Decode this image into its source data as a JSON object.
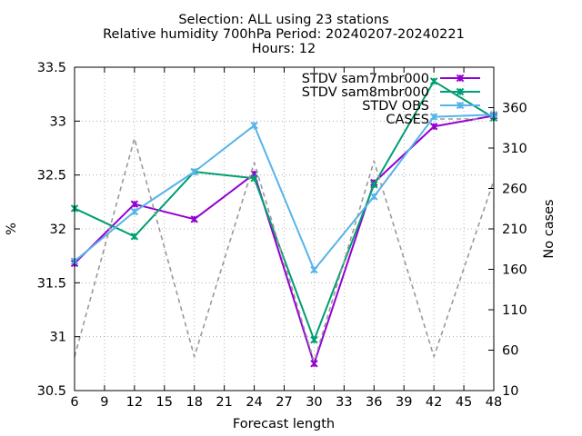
{
  "chart_data": {
    "type": "line",
    "title_lines": [
      "Selection: ALL using    23 stations",
      "Relative humidity 700hPa   Period: 20240207-20240221",
      "Hours: 12"
    ],
    "xlabel": "Forecast length",
    "ylabel": "%",
    "y2label": "No cases",
    "x_ticks": [
      6,
      9,
      12,
      15,
      18,
      21,
      24,
      27,
      30,
      33,
      36,
      39,
      42,
      45,
      48
    ],
    "xlim": [
      6,
      48
    ],
    "y_ticks": [
      30.5,
      31,
      31.5,
      32,
      32.5,
      33,
      33.5
    ],
    "ylim": [
      30.5,
      33.5
    ],
    "y2_ticks": [
      10,
      60,
      110,
      160,
      210,
      260,
      310,
      360
    ],
    "y2lim": [
      10,
      410
    ],
    "grid": true,
    "legend_position": "top-right",
    "series": [
      {
        "name": "STDV sam7mbr000",
        "color": "#9400d3",
        "axis": "y",
        "dash": false,
        "marker": "x",
        "x": [
          6,
          12,
          18,
          24,
          30,
          36,
          42,
          48
        ],
        "values": [
          31.68,
          32.23,
          32.09,
          32.51,
          30.75,
          32.43,
          32.95,
          33.05
        ]
      },
      {
        "name": "STDV sam8mbr000",
        "color": "#009e73",
        "axis": "y",
        "dash": false,
        "marker": "x",
        "x": [
          6,
          12,
          18,
          24,
          30,
          36,
          42,
          48
        ],
        "values": [
          32.19,
          31.93,
          32.53,
          32.47,
          30.97,
          32.41,
          33.37,
          33.03
        ]
      },
      {
        "name": "STDV OBS",
        "color": "#56b4e9",
        "axis": "y",
        "dash": false,
        "marker": "x",
        "x": [
          6,
          12,
          18,
          24,
          30,
          36,
          42,
          48
        ],
        "values": [
          31.7,
          32.16,
          32.53,
          32.96,
          31.62,
          32.3,
          33.04,
          33.06
        ]
      },
      {
        "name": "CASES",
        "color": "#999999",
        "axis": "y2",
        "dash": true,
        "marker": "none",
        "x": [
          6,
          12,
          18,
          24,
          30,
          36,
          42,
          48
        ],
        "values": [
          52,
          322,
          52,
          292,
          46,
          294,
          52,
          270
        ]
      }
    ]
  }
}
